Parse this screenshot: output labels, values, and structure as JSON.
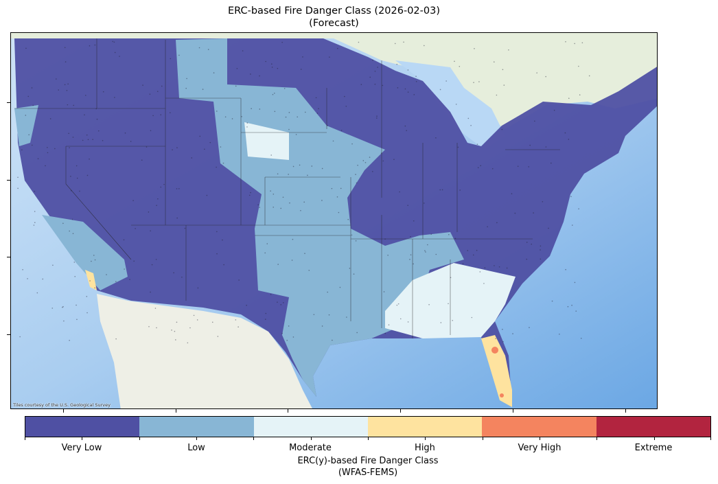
{
  "title": {
    "line1": "ERC-based Fire Danger Class (2026-02-03)",
    "line2": "(Forecast)"
  },
  "map": {
    "attribution": "Tiles courtesy of the U.S. Geological Survey"
  },
  "colorbar": {
    "classes": [
      {
        "label": "Very Low",
        "color": "#4f50a3"
      },
      {
        "label": "Low",
        "color": "#88b6d5"
      },
      {
        "label": "Moderate",
        "color": "#e5f3f7"
      },
      {
        "label": "High",
        "color": "#fee39f"
      },
      {
        "label": "Very High",
        "color": "#f4845f"
      },
      {
        "label": "Extreme",
        "color": "#b2243f"
      }
    ],
    "title_line1": "ERC(y)-based Fire Danger Class",
    "title_line2": "(WFAS-FEMS)"
  }
}
